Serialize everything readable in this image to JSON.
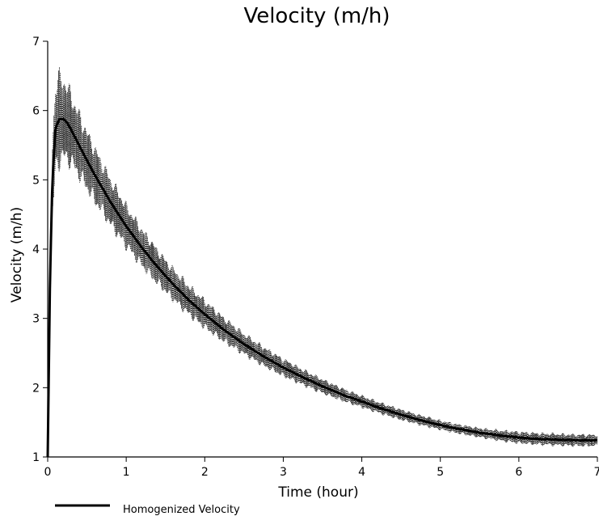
{
  "chart_data": {
    "type": "line",
    "title": "Velocity (m/h)",
    "xlabel": "Time (hour)",
    "ylabel": "Velocity (m/h)",
    "xlim": [
      0,
      7
    ],
    "ylim": [
      1,
      7
    ],
    "x_ticks": [
      "0",
      "1",
      "2",
      "3",
      "4",
      "5",
      "6",
      "7"
    ],
    "y_ticks": [
      "1",
      "2",
      "3",
      "4",
      "5",
      "6",
      "7"
    ],
    "grid": false,
    "legend_position": "bottom-left",
    "series": [
      {
        "name": "Homogenized Velocity",
        "style": "solid-thick",
        "color": "#000000",
        "x": [
          0,
          0.03,
          0.06,
          0.1,
          0.15,
          0.2,
          0.25,
          0.3,
          0.4,
          0.5,
          0.6,
          0.8,
          1.0,
          1.2,
          1.4,
          1.6,
          1.8,
          2.0,
          2.25,
          2.5,
          2.75,
          3.0,
          3.25,
          3.5,
          3.75,
          4.0,
          4.25,
          4.5,
          4.75,
          5.0,
          5.25,
          5.5,
          5.75,
          6.0,
          6.25,
          6.5,
          6.75,
          7.0
        ],
        "y": [
          1.0,
          3.6,
          5.0,
          5.75,
          5.88,
          5.88,
          5.82,
          5.72,
          5.5,
          5.28,
          5.07,
          4.68,
          4.33,
          4.02,
          3.74,
          3.49,
          3.26,
          3.06,
          2.83,
          2.63,
          2.45,
          2.29,
          2.15,
          2.02,
          1.9,
          1.8,
          1.7,
          1.61,
          1.53,
          1.46,
          1.4,
          1.35,
          1.31,
          1.28,
          1.26,
          1.25,
          1.24,
          1.24
        ]
      },
      {
        "name": "",
        "style": "dotted-oscillating",
        "color": "#000000",
        "envelope_x": [
          0,
          0.05,
          0.1,
          0.15,
          0.2,
          0.3,
          0.5,
          0.75,
          1.0,
          1.5,
          2.0,
          2.5,
          3.0,
          3.5,
          4.0,
          4.5,
          5.0,
          5.5,
          6.0,
          6.5,
          7.0
        ],
        "envelope_half_width": [
          0.0,
          0.6,
          0.8,
          0.75,
          0.7,
          0.6,
          0.5,
          0.42,
          0.36,
          0.28,
          0.24,
          0.18,
          0.15,
          0.12,
          0.1,
          0.09,
          0.08,
          0.08,
          0.1,
          0.1,
          0.1
        ]
      }
    ]
  }
}
